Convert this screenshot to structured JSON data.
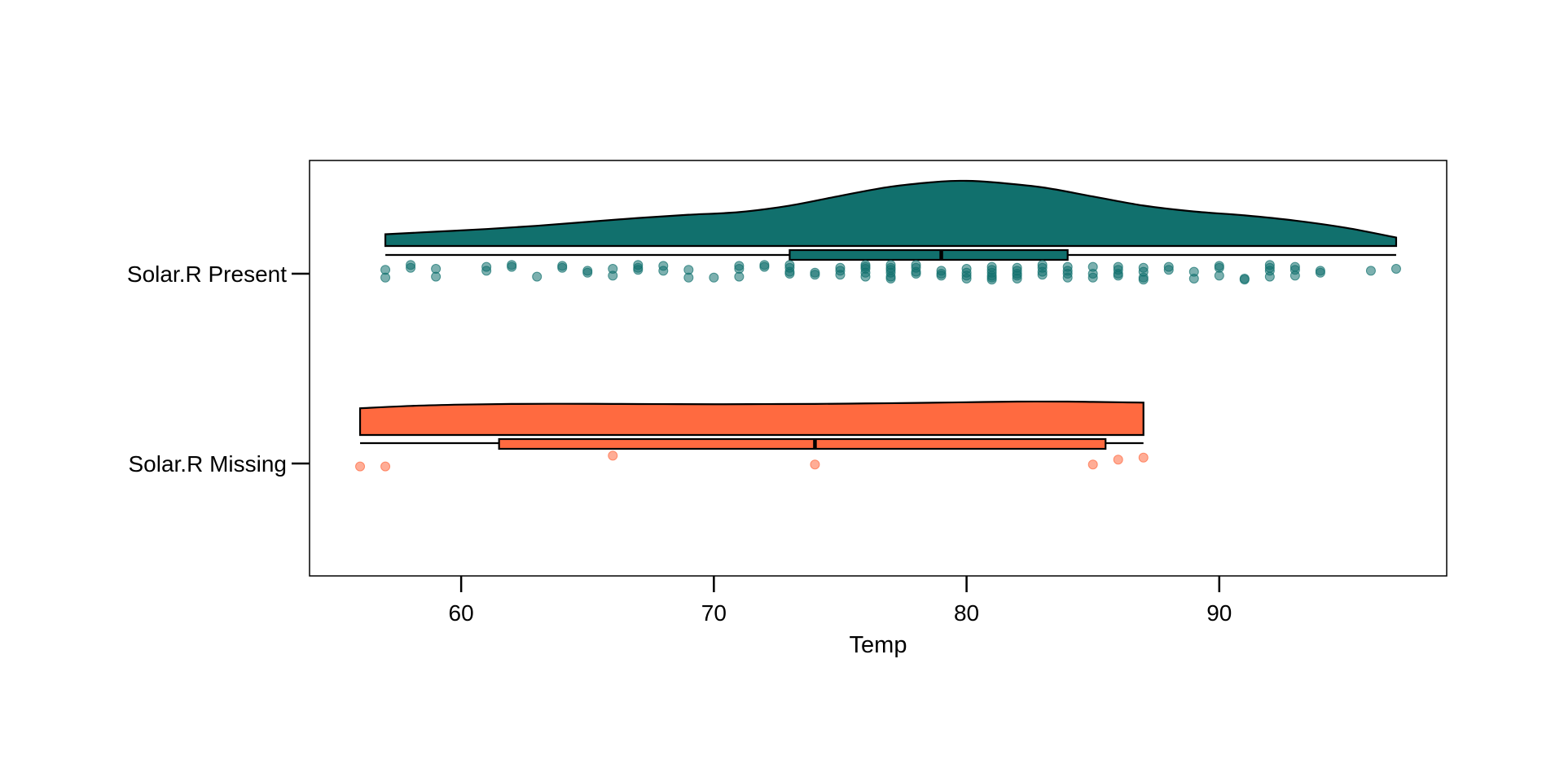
{
  "chart_data": {
    "type": "raincloud",
    "title": "",
    "xlabel": "Temp",
    "ylabel": "",
    "xlim": [
      54,
      99
    ],
    "x_ticks": [
      60,
      70,
      80,
      90
    ],
    "legend": "none",
    "grid": false,
    "groups": [
      {
        "name": "Solar.R Present",
        "color": "#11706D",
        "density": {
          "x": [
            57,
            59,
            61,
            63,
            65,
            67,
            69,
            71,
            73,
            75,
            77,
            79,
            80,
            81,
            83,
            85,
            87,
            89,
            91,
            93,
            95,
            97
          ],
          "density": [
            0.18,
            0.22,
            0.26,
            0.31,
            0.37,
            0.43,
            0.48,
            0.52,
            0.62,
            0.77,
            0.91,
            0.99,
            1.0,
            0.98,
            0.9,
            0.76,
            0.62,
            0.53,
            0.47,
            0.39,
            0.28,
            0.13
          ]
        },
        "box": {
          "min": 57,
          "q1": 73,
          "median": 79,
          "q3": 84,
          "max": 97
        },
        "points": [
          [
            57,
            0.4
          ],
          [
            57,
            -0.4
          ],
          [
            58,
            0.9
          ],
          [
            58,
            0.6
          ],
          [
            59,
            0.5
          ],
          [
            59,
            -0.3
          ],
          [
            61,
            0.7
          ],
          [
            61,
            0.3
          ],
          [
            62,
            0.9
          ],
          [
            62,
            0.7
          ],
          [
            63,
            -0.3
          ],
          [
            64,
            0.8
          ],
          [
            64,
            0.6
          ],
          [
            65,
            0.3
          ],
          [
            65,
            0.1
          ],
          [
            66,
            0.5
          ],
          [
            66,
            -0.2
          ],
          [
            67,
            0.9
          ],
          [
            67,
            0.6
          ],
          [
            67,
            0.4
          ],
          [
            68,
            0.8
          ],
          [
            68,
            0.3
          ],
          [
            69,
            0.4
          ],
          [
            69,
            -0.4
          ],
          [
            70,
            -0.4
          ],
          [
            71,
            0.8
          ],
          [
            71,
            0.5
          ],
          [
            71,
            -0.3
          ],
          [
            72,
            0.9
          ],
          [
            72,
            0.7
          ],
          [
            73,
            0.9
          ],
          [
            73,
            0.6
          ],
          [
            73,
            0.2
          ],
          [
            73,
            0.0
          ],
          [
            74,
            0.1
          ],
          [
            74,
            -0.1
          ],
          [
            75,
            0.6
          ],
          [
            75,
            0.3
          ],
          [
            75,
            -0.1
          ],
          [
            76,
            0.9
          ],
          [
            76,
            0.7
          ],
          [
            76,
            0.5
          ],
          [
            76,
            0.1
          ],
          [
            76,
            -0.3
          ],
          [
            77,
            0.9
          ],
          [
            77,
            0.6
          ],
          [
            77,
            0.4
          ],
          [
            77,
            0.1
          ],
          [
            77,
            -0.3
          ],
          [
            77,
            -0.5
          ],
          [
            78,
            0.9
          ],
          [
            78,
            0.6
          ],
          [
            78,
            0.2
          ],
          [
            78,
            0.0
          ],
          [
            79,
            0.3
          ],
          [
            79,
            0.0
          ],
          [
            79,
            -0.2
          ],
          [
            80,
            0.5
          ],
          [
            80,
            0.1
          ],
          [
            80,
            -0.2
          ],
          [
            80,
            -0.5
          ],
          [
            81,
            0.7
          ],
          [
            81,
            0.4
          ],
          [
            81,
            0.1
          ],
          [
            81,
            -0.2
          ],
          [
            81,
            -0.4
          ],
          [
            81,
            -0.6
          ],
          [
            82,
            0.6
          ],
          [
            82,
            0.3
          ],
          [
            82,
            0.0
          ],
          [
            82,
            -0.2
          ],
          [
            82,
            -0.5
          ],
          [
            83,
            0.9
          ],
          [
            83,
            0.6
          ],
          [
            83,
            0.2
          ],
          [
            83,
            -0.1
          ],
          [
            84,
            0.7
          ],
          [
            84,
            0.3
          ],
          [
            84,
            0.0
          ],
          [
            84,
            -0.4
          ],
          [
            85,
            0.7
          ],
          [
            85,
            0.0
          ],
          [
            85,
            -0.4
          ],
          [
            86,
            0.7
          ],
          [
            86,
            0.4
          ],
          [
            86,
            0.0
          ],
          [
            86,
            -0.2
          ],
          [
            87,
            0.6
          ],
          [
            87,
            0.2
          ],
          [
            87,
            -0.4
          ],
          [
            87,
            -0.6
          ],
          [
            88,
            0.7
          ],
          [
            88,
            0.4
          ],
          [
            89,
            0.2
          ],
          [
            89,
            -0.5
          ],
          [
            90,
            0.8
          ],
          [
            90,
            0.6
          ],
          [
            90,
            -0.2
          ],
          [
            91,
            -0.5
          ],
          [
            91,
            -0.6
          ],
          [
            92,
            0.9
          ],
          [
            92,
            0.6
          ],
          [
            92,
            0.3
          ],
          [
            92,
            -0.3
          ],
          [
            93,
            0.7
          ],
          [
            93,
            0.4
          ],
          [
            93,
            -0.2
          ],
          [
            94,
            0.3
          ],
          [
            94,
            0.1
          ],
          [
            96,
            0.3
          ],
          [
            97,
            0.5
          ]
        ]
      },
      {
        "name": "Solar.R Missing",
        "color": "#FF6A40",
        "density": {
          "x": [
            56,
            58,
            60,
            62,
            64,
            66,
            68,
            70,
            72,
            74,
            76,
            78,
            80,
            82,
            84,
            85,
            86,
            87
          ],
          "density": [
            0.8,
            0.87,
            0.91,
            0.93,
            0.935,
            0.93,
            0.925,
            0.92,
            0.925,
            0.93,
            0.945,
            0.96,
            0.98,
            1.0,
            1.0,
            0.99,
            0.98,
            0.97
          ]
        },
        "box": {
          "min": 56,
          "q1": 61.5,
          "median": 74,
          "q3": 85.5,
          "max": 87
        },
        "points": [
          [
            56,
            -0.3
          ],
          [
            57,
            -0.3
          ],
          [
            66,
            0.8
          ],
          [
            74,
            -0.1
          ],
          [
            85,
            -0.1
          ],
          [
            86,
            0.4
          ],
          [
            87,
            0.6
          ]
        ]
      }
    ]
  }
}
